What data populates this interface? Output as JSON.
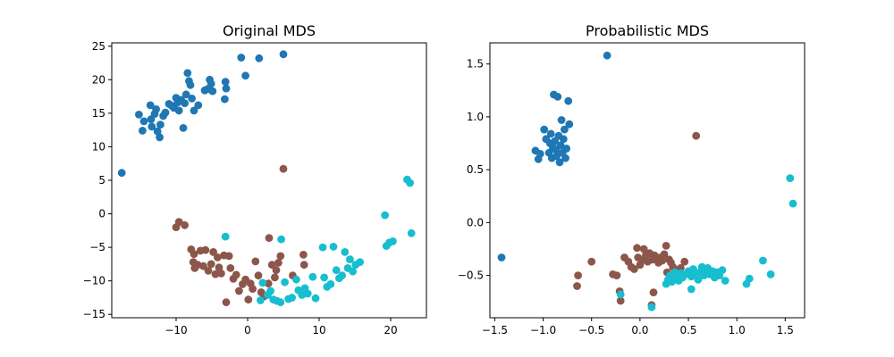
{
  "colors": {
    "cluster_a": "#1f77b4",
    "cluster_b": "#8c564b",
    "cluster_c": "#17becf"
  },
  "chart_data": [
    {
      "type": "scatter",
      "title": "Original MDS",
      "xlabel": "",
      "ylabel": "",
      "xlim": [
        -19,
        25
      ],
      "ylim": [
        -15.5,
        25.5
      ],
      "xticks": [
        -10,
        0,
        10,
        20
      ],
      "yticks": [
        -15,
        -10,
        -5,
        0,
        5,
        10,
        15,
        20,
        25
      ],
      "grid": false,
      "series": [
        {
          "color": "#1f77b4",
          "points": [
            [
              -17.6,
              6.1
            ],
            [
              -15.2,
              14.8
            ],
            [
              -14.7,
              12.4
            ],
            [
              -14.5,
              13.8
            ],
            [
              -13.6,
              16.2
            ],
            [
              -13.5,
              14.1
            ],
            [
              -13.4,
              13.0
            ],
            [
              -13.0,
              14.9
            ],
            [
              -12.8,
              15.6
            ],
            [
              -12.6,
              12.3
            ],
            [
              -12.3,
              11.4
            ],
            [
              -12.2,
              13.3
            ],
            [
              -11.8,
              14.6
            ],
            [
              -11.5,
              15.1
            ],
            [
              -11.0,
              16.4
            ],
            [
              -10.6,
              16.1
            ],
            [
              -10.3,
              15.8
            ],
            [
              -10.0,
              17.3
            ],
            [
              -9.8,
              16.6
            ],
            [
              -9.6,
              15.4
            ],
            [
              -9.3,
              17.0
            ],
            [
              -9.0,
              12.8
            ],
            [
              -8.8,
              16.5
            ],
            [
              -8.6,
              17.8
            ],
            [
              -8.4,
              21.0
            ],
            [
              -8.2,
              19.8
            ],
            [
              -8.0,
              19.2
            ],
            [
              -7.8,
              17.2
            ],
            [
              -7.5,
              15.4
            ],
            [
              -6.9,
              16.2
            ],
            [
              -6.0,
              18.4
            ],
            [
              -5.6,
              18.6
            ],
            [
              -5.3,
              20.0
            ],
            [
              -5.1,
              19.4
            ],
            [
              -4.9,
              18.3
            ],
            [
              -3.2,
              17.1
            ],
            [
              -3.1,
              19.7
            ],
            [
              -3.0,
              18.7
            ],
            [
              -0.9,
              23.3
            ],
            [
              -0.3,
              20.6
            ],
            [
              1.6,
              23.2
            ],
            [
              5.0,
              23.8
            ]
          ]
        },
        {
          "color": "#8c564b",
          "points": [
            [
              -10.0,
              -2.0
            ],
            [
              -9.6,
              -1.2
            ],
            [
              -8.8,
              -1.7
            ],
            [
              -7.9,
              -5.3
            ],
            [
              -7.6,
              -7.2
            ],
            [
              -7.5,
              -6.0
            ],
            [
              -7.4,
              -8.1
            ],
            [
              -7.0,
              -7.6
            ],
            [
              -6.6,
              -5.5
            ],
            [
              -6.2,
              -7.8
            ],
            [
              -5.9,
              -5.4
            ],
            [
              -5.5,
              -8.5
            ],
            [
              -5.1,
              -7.5
            ],
            [
              -4.8,
              -5.7
            ],
            [
              -4.5,
              -9.0
            ],
            [
              -4.2,
              -6.5
            ],
            [
              -4.0,
              -8.0
            ],
            [
              -3.7,
              -8.9
            ],
            [
              -3.3,
              -6.2
            ],
            [
              -3.0,
              -13.2
            ],
            [
              -2.6,
              -6.3
            ],
            [
              -2.4,
              -8.1
            ],
            [
              -2.0,
              -9.7
            ],
            [
              -1.6,
              -9.1
            ],
            [
              -1.2,
              -11.5
            ],
            [
              -0.7,
              -10.5
            ],
            [
              -0.3,
              -9.8
            ],
            [
              0.1,
              -12.8
            ],
            [
              0.4,
              -10.4
            ],
            [
              0.7,
              -11.2
            ],
            [
              1.1,
              -7.1
            ],
            [
              1.5,
              -9.2
            ],
            [
              1.9,
              -11.7
            ],
            [
              2.3,
              -12.3
            ],
            [
              2.9,
              -10.4
            ],
            [
              3.0,
              -3.6
            ],
            [
              3.4,
              -7.6
            ],
            [
              3.8,
              -9.5
            ],
            [
              4.0,
              -8.4
            ],
            [
              4.3,
              -7.3
            ],
            [
              4.6,
              -6.3
            ],
            [
              5.0,
              6.7
            ],
            [
              6.3,
              -9.2
            ],
            [
              7.8,
              -6.1
            ],
            [
              7.9,
              -7.6
            ]
          ]
        },
        {
          "color": "#17becf",
          "points": [
            [
              -3.1,
              -3.4
            ],
            [
              1.8,
              -12.9
            ],
            [
              2.1,
              -10.3
            ],
            [
              2.8,
              -12.1
            ],
            [
              3.2,
              -11.5
            ],
            [
              3.6,
              -12.8
            ],
            [
              4.1,
              -13.0
            ],
            [
              4.6,
              -13.2
            ],
            [
              4.7,
              -3.8
            ],
            [
              5.2,
              -10.2
            ],
            [
              5.7,
              -12.7
            ],
            [
              6.2,
              -12.5
            ],
            [
              6.8,
              -9.8
            ],
            [
              7.1,
              -11.4
            ],
            [
              7.6,
              -12.1
            ],
            [
              8.0,
              -11.1
            ],
            [
              8.4,
              -11.9
            ],
            [
              9.1,
              -9.4
            ],
            [
              9.5,
              -12.6
            ],
            [
              10.5,
              -5.0
            ],
            [
              10.7,
              -9.5
            ],
            [
              11.1,
              -10.9
            ],
            [
              11.6,
              -10.5
            ],
            [
              12.0,
              -4.9
            ],
            [
              12.4,
              -8.4
            ],
            [
              12.8,
              -9.6
            ],
            [
              13.2,
              -9.2
            ],
            [
              13.6,
              -5.7
            ],
            [
              14.0,
              -8.1
            ],
            [
              14.3,
              -6.8
            ],
            [
              14.7,
              -8.6
            ],
            [
              15.1,
              -7.6
            ],
            [
              15.7,
              -7.2
            ],
            [
              19.2,
              -0.2
            ],
            [
              19.4,
              -4.8
            ],
            [
              19.8,
              -4.3
            ],
            [
              20.3,
              -4.1
            ],
            [
              22.3,
              5.1
            ],
            [
              22.7,
              4.6
            ],
            [
              22.9,
              -2.9
            ]
          ]
        }
      ]
    },
    {
      "type": "scatter",
      "title": "Probabilistic MDS",
      "xlabel": "",
      "ylabel": "",
      "xlim": [
        -1.55,
        1.7
      ],
      "ylim": [
        -0.9,
        1.7
      ],
      "xticks": [
        -1.5,
        -1.0,
        -0.5,
        0.0,
        0.5,
        1.0,
        1.5
      ],
      "yticks": [
        -0.5,
        0.0,
        0.5,
        1.0,
        1.5
      ],
      "grid": false,
      "series": [
        {
          "color": "#1f77b4",
          "points": [
            [
              -1.43,
              -0.33
            ],
            [
              -1.08,
              0.68
            ],
            [
              -1.05,
              0.6
            ],
            [
              -1.03,
              0.65
            ],
            [
              -0.99,
              0.88
            ],
            [
              -0.97,
              0.79
            ],
            [
              -0.94,
              0.66
            ],
            [
              -0.93,
              0.75
            ],
            [
              -0.92,
              0.84
            ],
            [
              -0.91,
              0.61
            ],
            [
              -0.9,
              0.71
            ],
            [
              -0.89,
              1.21
            ],
            [
              -0.88,
              0.77
            ],
            [
              -0.87,
              0.69
            ],
            [
              -0.86,
              0.63
            ],
            [
              -0.85,
              1.19
            ],
            [
              -0.84,
              0.82
            ],
            [
              -0.83,
              0.57
            ],
            [
              -0.82,
              0.73
            ],
            [
              -0.81,
              0.97
            ],
            [
              -0.8,
              0.66
            ],
            [
              -0.79,
              0.79
            ],
            [
              -0.78,
              0.88
            ],
            [
              -0.77,
              0.61
            ],
            [
              -0.76,
              0.7
            ],
            [
              -0.74,
              1.15
            ],
            [
              -0.73,
              0.93
            ],
            [
              -0.34,
              1.58
            ]
          ]
        },
        {
          "color": "#8c564b",
          "points": [
            [
              -0.65,
              -0.6
            ],
            [
              -0.64,
              -0.5
            ],
            [
              -0.5,
              -0.37
            ],
            [
              -0.28,
              -0.49
            ],
            [
              -0.24,
              -0.5
            ],
            [
              -0.21,
              -0.65
            ],
            [
              -0.2,
              -0.74
            ],
            [
              -0.16,
              -0.33
            ],
            [
              -0.12,
              -0.37
            ],
            [
              -0.09,
              -0.42
            ],
            [
              -0.06,
              -0.44
            ],
            [
              -0.03,
              -0.24
            ],
            [
              -0.02,
              -0.33
            ],
            [
              0.0,
              -0.4
            ],
            [
              0.02,
              -0.36
            ],
            [
              0.04,
              -0.25
            ],
            [
              0.06,
              -0.31
            ],
            [
              0.08,
              -0.37
            ],
            [
              0.1,
              -0.29
            ],
            [
              0.12,
              -0.78
            ],
            [
              0.13,
              -0.35
            ],
            [
              0.14,
              -0.66
            ],
            [
              0.15,
              -0.31
            ],
            [
              0.17,
              -0.34
            ],
            [
              0.19,
              -0.38
            ],
            [
              0.21,
              -0.33
            ],
            [
              0.23,
              -0.36
            ],
            [
              0.25,
              -0.3
            ],
            [
              0.27,
              -0.22
            ],
            [
              0.28,
              -0.47
            ],
            [
              0.3,
              -0.35
            ],
            [
              0.32,
              -0.38
            ],
            [
              0.34,
              -0.42
            ],
            [
              0.36,
              -0.48
            ],
            [
              0.38,
              -0.45
            ],
            [
              0.42,
              -0.43
            ],
            [
              0.46,
              -0.37
            ],
            [
              0.58,
              0.82
            ]
          ]
        },
        {
          "color": "#17becf",
          "points": [
            [
              -0.2,
              -0.68
            ],
            [
              0.12,
              -0.8
            ],
            [
              0.27,
              -0.58
            ],
            [
              0.29,
              -0.54
            ],
            [
              0.31,
              -0.5
            ],
            [
              0.33,
              -0.56
            ],
            [
              0.36,
              -0.47
            ],
            [
              0.38,
              -0.52
            ],
            [
              0.4,
              -0.55
            ],
            [
              0.42,
              -0.48
            ],
            [
              0.44,
              -0.52
            ],
            [
              0.47,
              -0.49
            ],
            [
              0.5,
              -0.46
            ],
            [
              0.53,
              -0.51
            ],
            [
              0.55,
              -0.44
            ],
            [
              0.58,
              -0.48
            ],
            [
              0.6,
              -0.54
            ],
            [
              0.62,
              -0.47
            ],
            [
              0.64,
              -0.42
            ],
            [
              0.66,
              -0.5
            ],
            [
              0.68,
              -0.46
            ],
            [
              0.7,
              -0.43
            ],
            [
              0.72,
              -0.49
            ],
            [
              0.75,
              -0.46
            ],
            [
              0.77,
              -0.52
            ],
            [
              0.8,
              -0.47
            ],
            [
              0.82,
              -0.5
            ],
            [
              0.85,
              -0.45
            ],
            [
              0.88,
              -0.55
            ],
            [
              1.1,
              -0.58
            ],
            [
              1.13,
              -0.53
            ],
            [
              1.27,
              -0.36
            ],
            [
              1.35,
              -0.49
            ],
            [
              1.55,
              0.42
            ],
            [
              1.58,
              0.18
            ],
            [
              0.53,
              -0.63
            ]
          ]
        }
      ]
    }
  ]
}
